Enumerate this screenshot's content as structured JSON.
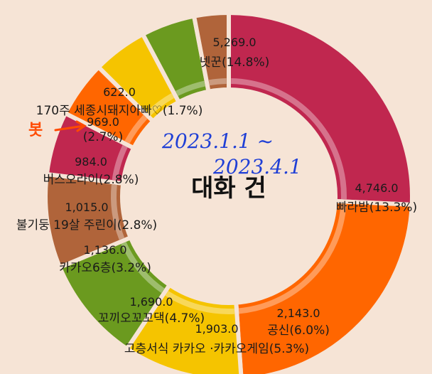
{
  "chart_data": {
    "type": "pie",
    "center_label": "대화 건",
    "slices": [
      {
        "name": "넷꾼",
        "value": 5269.0,
        "pct": 14.8,
        "value_text": "5,269.0",
        "name_text": "넷꾼(14.8%)",
        "color": "#c0274f"
      },
      {
        "name": "빠라밤",
        "value": 4746.0,
        "pct": 13.3,
        "value_text": "4,746.0",
        "name_text": "빠라밤(13.3%)",
        "color": "#ff6600"
      },
      {
        "name": "공신",
        "value": 2143.0,
        "pct": 6.0,
        "value_text": "2,143.0",
        "name_text": "공신(6.0%)",
        "color": "#f5c400"
      },
      {
        "name": "고층서식 카카오 · 카카오게임",
        "value": 1903.0,
        "pct": 5.3,
        "value_text": "1,903.0",
        "name_text": "고층서식 카카오 ·카카오게임(5.3%)",
        "color": "#6b9a1f"
      },
      {
        "name": "꼬끼오꼬꼬댁",
        "value": 1690.0,
        "pct": 4.7,
        "value_text": "1,690.0",
        "name_text": "꼬끼오꼬꼬댁(4.7%)",
        "color": "#b0643a"
      },
      {
        "name": "카카오6층",
        "value": 1136.0,
        "pct": 3.2,
        "value_text": "1,136.0",
        "name_text": "카카오6층(3.2%)",
        "color": "#c0274f"
      },
      {
        "name": "불기둥 19살 주린이",
        "value": 1015.0,
        "pct": 2.8,
        "value_text": "1,015.0",
        "name_text": "불기둥 19살 주린이(2.8%)",
        "color": "#ff6600"
      },
      {
        "name": "버스오라이",
        "value": 984.0,
        "pct": 2.8,
        "value_text": "984.0",
        "name_text": "버스오라이(2.8%)",
        "color": "#f5c400"
      },
      {
        "name": "(unlabeled)",
        "value": 969.0,
        "pct": 2.7,
        "value_text": "969.0",
        "name_text": "(2.7%)",
        "color": "#6b9a1f"
      },
      {
        "name": "170주 세종시돼지아빠♡",
        "value": 622.0,
        "pct": 1.7,
        "value_text": "622.0",
        "name_text": "170주 세종시돼지아빠♡(1.7%)",
        "color": "#b0643a"
      }
    ]
  },
  "annotations": {
    "handwritten_date_line1": "2023.1.1 ~",
    "handwritten_date_line2": "2023.4.1",
    "marker_text": "봇",
    "marker_color": "#ff4a00",
    "pen_color": "#1f3fd6"
  }
}
